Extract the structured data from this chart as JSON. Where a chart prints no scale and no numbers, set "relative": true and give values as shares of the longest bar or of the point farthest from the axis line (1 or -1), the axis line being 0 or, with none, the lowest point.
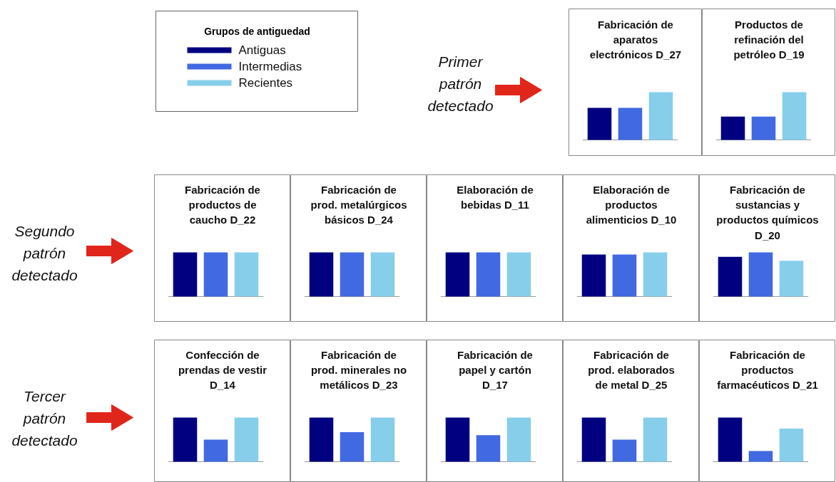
{
  "chart_data": [
    {
      "type": "other",
      "legend_title": "Grupos de antiguedad",
      "series": [
        {
          "name": "Antiguas",
          "color": "#000080"
        },
        {
          "name": "Intermedias",
          "color": "#4169e1"
        },
        {
          "name": "Recientes",
          "color": "#87ceeb"
        }
      ]
    },
    {
      "type": "other",
      "annotations": [
        "Primer patrón detectado"
      ]
    },
    {
      "type": "bar",
      "title": "Fabricación de aparatos electrónicos D_27",
      "categories": [
        null,
        null,
        null
      ],
      "values": [
        0.67,
        0.67,
        1
      ],
      "colors": [
        "#000080",
        "#4169e1",
        "#87ceeb"
      ],
      "relative": true
    },
    {
      "type": "bar",
      "title": "Productos de refinación del petróleo D_19",
      "categories": [
        null,
        null,
        null
      ],
      "values": [
        0.49,
        0.49,
        1
      ],
      "colors": [
        "#000080",
        "#4169e1",
        "#87ceeb"
      ],
      "relative": true
    },
    {
      "type": "other",
      "annotations": [
        "Segundo patrón detectado"
      ]
    },
    {
      "type": "bar",
      "title": "Fabricación de productos de caucho D_22",
      "categories": [
        null,
        null,
        null
      ],
      "values": [
        1,
        1,
        1
      ],
      "colors": [
        "#000080",
        "#4169e1",
        "#87ceeb"
      ],
      "relative": true
    },
    {
      "type": "bar",
      "title": "Fabricación de prod. metalúrgicos básicos D_24",
      "categories": [
        null,
        null,
        null
      ],
      "values": [
        1,
        1,
        1
      ],
      "colors": [
        "#000080",
        "#4169e1",
        "#87ceeb"
      ],
      "relative": true
    },
    {
      "type": "bar",
      "title": "Elaboración de bebidas D_11",
      "categories": [
        null,
        null,
        null
      ],
      "values": [
        1,
        1,
        1
      ],
      "colors": [
        "#000080",
        "#4169e1",
        "#87ceeb"
      ],
      "relative": true
    },
    {
      "type": "bar",
      "title": "Elaboración de productos alimenticios D_10",
      "categories": [
        null,
        null,
        null
      ],
      "values": [
        0.95,
        0.95,
        1
      ],
      "colors": [
        "#000080",
        "#4169e1",
        "#87ceeb"
      ],
      "relative": true
    },
    {
      "type": "bar",
      "title": "Fabricación de sustancias y productos químicos D_20",
      "categories": [
        null,
        null,
        null
      ],
      "values": [
        0.9,
        1,
        0.81
      ],
      "colors": [
        "#000080",
        "#4169e1",
        "#87ceeb"
      ],
      "relative": true
    },
    {
      "type": "other",
      "annotations": [
        "Tercer patrón detectado"
      ]
    },
    {
      "type": "bar",
      "title": "Confección de prendas de vestir D_14",
      "categories": [
        null,
        null,
        null
      ],
      "values": [
        1,
        0.5,
        1
      ],
      "colors": [
        "#000080",
        "#4169e1",
        "#87ceeb"
      ],
      "relative": true
    },
    {
      "type": "bar",
      "title": "Fabricación de prod. minerales no metálicos D_23",
      "categories": [
        null,
        null,
        null
      ],
      "values": [
        1,
        0.67,
        1
      ],
      "colors": [
        "#000080",
        "#4169e1",
        "#87ceeb"
      ],
      "relative": true
    },
    {
      "type": "bar",
      "title": "Fabricación de papel y cartón D_17",
      "categories": [
        null,
        null,
        null
      ],
      "values": [
        1,
        0.6,
        1
      ],
      "colors": [
        "#000080",
        "#4169e1",
        "#87ceeb"
      ],
      "relative": true
    },
    {
      "type": "bar",
      "title": "Fabricación de prod. elaborados de metal D_25",
      "categories": [
        null,
        null,
        null
      ],
      "values": [
        1,
        0.5,
        1
      ],
      "colors": [
        "#000080",
        "#4169e1",
        "#87ceeb"
      ],
      "relative": true
    },
    {
      "type": "bar",
      "title": "Fabricación de productos farmacéuticos D_21",
      "categories": [
        null,
        null,
        null
      ],
      "values": [
        1,
        0.24,
        0.75
      ],
      "colors": [
        "#000080",
        "#4169e1",
        "#87ceeb"
      ],
      "relative": true
    }
  ]
}
